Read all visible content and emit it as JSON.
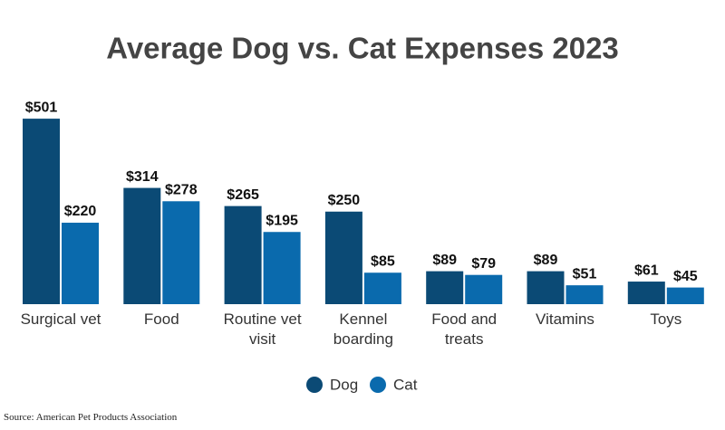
{
  "chart_data": {
    "type": "bar",
    "title": "Average Dog vs. Cat Expenses 2023",
    "categories": [
      "Surgical vet",
      "Food",
      "Routine vet visit",
      "Kennel boarding",
      "Food and treats",
      "Vitamins",
      "Toys"
    ],
    "series": [
      {
        "name": "Dog",
        "color": "#0b4a75",
        "values": [
          501,
          314,
          265,
          250,
          89,
          89,
          61
        ],
        "value_labels": [
          "$501",
          "$314",
          "$265",
          "$250",
          "$89",
          "$89",
          "$61"
        ]
      },
      {
        "name": "Cat",
        "color": "#0a6aad",
        "values": [
          220,
          278,
          195,
          85,
          79,
          51,
          45
        ],
        "value_labels": [
          "$220",
          "$278",
          "$195",
          "$85",
          "$79",
          "$51",
          "$45"
        ]
      }
    ],
    "legend": "bottom",
    "source": "Source: American Pet Products Association"
  }
}
